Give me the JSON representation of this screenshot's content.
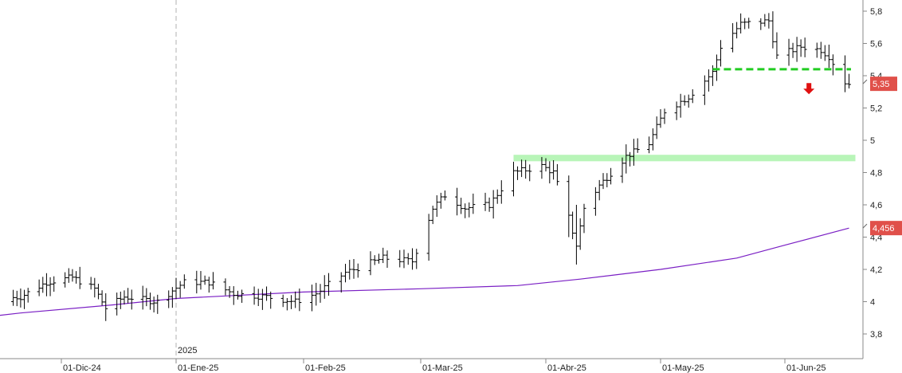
{
  "chart_data": {
    "type": "ohlc",
    "ylim": [
      3.7,
      5.85
    ],
    "y_ticks": [
      "5,8",
      "5,6",
      "5,4",
      "5,2",
      "5",
      "4,8",
      "4,6",
      "4,4",
      "4,2",
      "4",
      "3,8"
    ],
    "y_tick_values": [
      5.8,
      5.6,
      5.4,
      5.2,
      5.0,
      4.8,
      4.6,
      4.4,
      4.2,
      4.0,
      3.8
    ],
    "x_ticks": [
      "01-Dic-24",
      "01-Ene-25",
      "01-Feb-25",
      "01-Mar-25",
      "01-Abr-25",
      "01-May-25",
      "01-Jun-25"
    ],
    "x_tick_dates": [
      "2024-12-01",
      "2025-01-01",
      "2025-02-01",
      "2025-03-01",
      "2025-04-01",
      "2025-05-01",
      "2025-06-01"
    ],
    "year_label": "2025",
    "price_badge": "5,35",
    "ma_badge": "4,456",
    "colors": {
      "bars": "#000000",
      "moving_average": "#7a1fc4",
      "support_zone": "#b8f5b8",
      "resistance_line": "#22cc22",
      "arrow": "#e01010",
      "badge": "#e0504a",
      "grid_year": "#b0b0b0"
    },
    "support_zone": {
      "from": "2025-03-24",
      "to": "2025-06-17",
      "y_low": 4.87,
      "y_high": 4.91
    },
    "breakdown_line": {
      "from": "2025-05-14",
      "to": "2025-06-17",
      "y": 5.44
    },
    "arrow_marker": {
      "date": "2025-06-07",
      "y": 5.32,
      "direction": "down"
    },
    "price_anchors": [
      [
        "2024-11-06",
        4.0
      ],
      [
        "2024-11-20",
        4.03
      ],
      [
        "2024-11-27",
        4.12
      ],
      [
        "2024-12-04",
        4.15
      ],
      [
        "2024-12-10",
        4.08
      ],
      [
        "2024-12-13",
        3.96
      ],
      [
        "2024-12-18",
        4.03
      ],
      [
        "2024-12-27",
        4.0
      ],
      [
        "2025-01-03",
        4.12
      ],
      [
        "2025-01-09",
        4.12
      ],
      [
        "2025-01-15",
        4.05
      ],
      [
        "2025-01-23",
        4.03
      ],
      [
        "2025-01-30",
        4.0
      ],
      [
        "2025-02-04",
        4.05
      ],
      [
        "2025-02-11",
        4.18
      ],
      [
        "2025-02-20",
        4.27
      ],
      [
        "2025-02-27",
        4.25
      ],
      [
        "2025-03-04",
        4.58
      ],
      [
        "2025-03-07",
        4.66
      ],
      [
        "2025-03-12",
        4.58
      ],
      [
        "2025-03-18",
        4.6
      ],
      [
        "2025-03-24",
        4.8
      ],
      [
        "2025-03-31",
        4.84
      ],
      [
        "2025-04-03",
        4.8
      ],
      [
        "2025-04-07",
        4.52
      ],
      [
        "2025-04-09",
        4.35
      ],
      [
        "2025-04-11",
        4.58
      ],
      [
        "2025-04-15",
        4.72
      ],
      [
        "2025-04-22",
        4.9
      ],
      [
        "2025-04-28",
        4.98
      ],
      [
        "2025-05-02",
        5.18
      ],
      [
        "2025-05-08",
        5.27
      ],
      [
        "2025-05-14",
        5.42
      ],
      [
        "2025-05-16",
        5.58
      ],
      [
        "2025-05-21",
        5.72
      ],
      [
        "2025-05-28",
        5.74
      ],
      [
        "2025-05-30",
        5.52
      ],
      [
        "2025-06-05",
        5.58
      ],
      [
        "2025-06-10",
        5.56
      ],
      [
        "2025-06-12",
        5.52
      ],
      [
        "2025-06-16",
        5.36
      ],
      [
        "2025-06-17",
        5.35
      ]
    ],
    "moving_average_anchors": [
      [
        "2024-11-01",
        3.88
      ],
      [
        "2024-11-20",
        3.93
      ],
      [
        "2024-12-15",
        3.98
      ],
      [
        "2025-01-01",
        4.02
      ],
      [
        "2025-02-01",
        4.06
      ],
      [
        "2025-03-01",
        4.08
      ],
      [
        "2025-03-25",
        4.1
      ],
      [
        "2025-04-10",
        4.14
      ],
      [
        "2025-05-01",
        4.2
      ],
      [
        "2025-05-20",
        4.27
      ],
      [
        "2025-06-01",
        4.35
      ],
      [
        "2025-06-17",
        4.456
      ]
    ]
  }
}
